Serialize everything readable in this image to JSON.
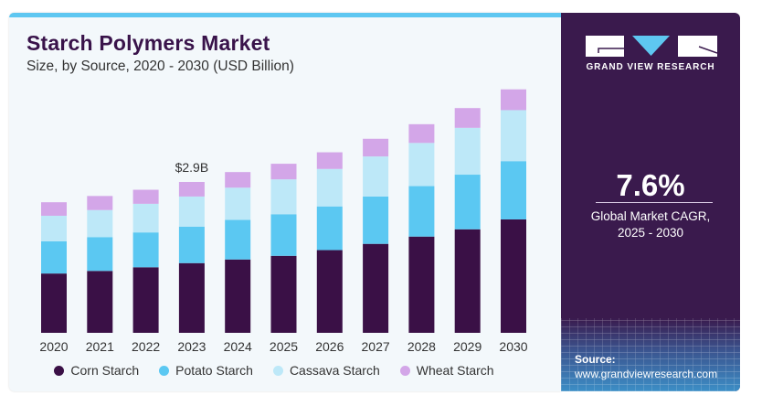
{
  "header": {
    "title": "Starch Polymers Market",
    "subtitle": "Size, by Source, 2020 - 2030 (USD Billion)"
  },
  "brand": {
    "name": "GRAND VIEW RESEARCH",
    "colors": {
      "panel": "#3a1a4d",
      "accent": "#5ec7f1"
    }
  },
  "stat": {
    "value": "7.6%",
    "label_line1": "Global Market CAGR,",
    "label_line2": "2025 - 2030"
  },
  "source": {
    "label": "Source:",
    "url": "www.grandviewresearch.com"
  },
  "chart_data": {
    "type": "bar",
    "stacked": true,
    "title": "Starch Polymers Market",
    "subtitle": "Size, by Source, 2020 - 2030 (USD Billion)",
    "xlabel": "",
    "ylabel": "USD Billion",
    "ylim": [
      0,
      5
    ],
    "grid": false,
    "legend_position": "bottom",
    "categories": [
      "2020",
      "2021",
      "2022",
      "2023",
      "2024",
      "2025",
      "2026",
      "2027",
      "2028",
      "2029",
      "2030"
    ],
    "series": [
      {
        "name": "Corn Starch",
        "color": "#3a1046",
        "values": [
          1.14,
          1.19,
          1.26,
          1.34,
          1.41,
          1.48,
          1.59,
          1.71,
          1.85,
          1.99,
          2.18
        ]
      },
      {
        "name": "Potato Starch",
        "color": "#5bc8f2",
        "values": [
          0.62,
          0.65,
          0.67,
          0.7,
          0.76,
          0.8,
          0.84,
          0.91,
          0.97,
          1.05,
          1.12
        ]
      },
      {
        "name": "Cassava Starch",
        "color": "#bde8f8",
        "values": [
          0.49,
          0.52,
          0.55,
          0.58,
          0.62,
          0.67,
          0.72,
          0.77,
          0.83,
          0.9,
          0.98
        ]
      },
      {
        "name": "Wheat Starch",
        "color": "#d3a6e8",
        "values": [
          0.26,
          0.27,
          0.27,
          0.28,
          0.3,
          0.3,
          0.32,
          0.34,
          0.36,
          0.38,
          0.4
        ]
      }
    ],
    "annotations": [
      {
        "category": "2023",
        "text": "$2.9B"
      }
    ]
  }
}
